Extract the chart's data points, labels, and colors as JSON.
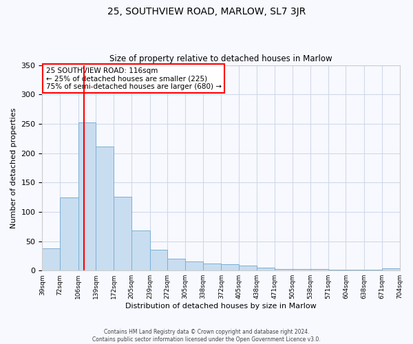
{
  "title_line1": "25, SOUTHVIEW ROAD, MARLOW, SL7 3JR",
  "title_line2": "Size of property relative to detached houses in Marlow",
  "xlabel": "Distribution of detached houses by size in Marlow",
  "ylabel": "Number of detached properties",
  "bin_edges": [
    39,
    72,
    106,
    139,
    172,
    205,
    239,
    272,
    305,
    338,
    372,
    405,
    438,
    471,
    505,
    538,
    571,
    604,
    638,
    671,
    704
  ],
  "bin_labels": [
    "39sqm",
    "72sqm",
    "106sqm",
    "139sqm",
    "172sqm",
    "205sqm",
    "239sqm",
    "272sqm",
    "305sqm",
    "338sqm",
    "372sqm",
    "405sqm",
    "438sqm",
    "471sqm",
    "505sqm",
    "538sqm",
    "571sqm",
    "604sqm",
    "638sqm",
    "671sqm",
    "704sqm"
  ],
  "bar_heights": [
    38,
    125,
    252,
    211,
    126,
    68,
    35,
    20,
    15,
    12,
    11,
    9,
    5,
    3,
    3,
    3,
    2,
    2,
    2,
    4
  ],
  "bar_color": "#c8ddf0",
  "bar_edge_color": "#7bafd4",
  "vline_x": 116,
  "vline_color": "red",
  "annotation_title": "25 SOUTHVIEW ROAD: 116sqm",
  "annotation_line1": "← 25% of detached houses are smaller (225)",
  "annotation_line2": "75% of semi-detached houses are larger (680) →",
  "annotation_box_color": "red",
  "annotation_bg": "white",
  "ylim": [
    0,
    350
  ],
  "yticks": [
    0,
    50,
    100,
    150,
    200,
    250,
    300,
    350
  ],
  "footer_line1": "Contains HM Land Registry data © Crown copyright and database right 2024.",
  "footer_line2": "Contains public sector information licensed under the Open Government Licence v3.0.",
  "background_color": "#f8f9ff",
  "grid_color": "#d0d8e8",
  "spine_color": "#cccccc"
}
